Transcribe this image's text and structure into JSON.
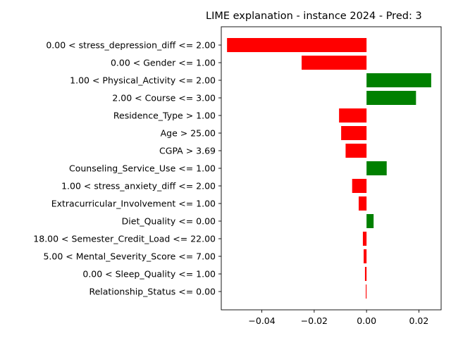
{
  "chart_data": {
    "type": "bar",
    "orientation": "horizontal",
    "title": "LIME explanation - instance 2024 - Pred: 3",
    "xlabel": "",
    "ylabel": "",
    "xlim": [
      -0.0555,
      0.0285
    ],
    "xticks": [
      -0.04,
      -0.02,
      0.0,
      0.02
    ],
    "xtick_labels": [
      "−0.04",
      "−0.02",
      "0.00",
      "0.02"
    ],
    "grid": false,
    "legend": "none",
    "colors": {
      "positive": "#008000",
      "negative": "#ff0000"
    },
    "categories": [
      "0.00 < stress_depression_diff <= 2.00",
      "0.00 < Gender <= 1.00",
      "1.00 < Physical_Activity <= 2.00",
      "2.00 < Course <= 3.00",
      "Residence_Type > 1.00",
      "Age > 25.00",
      "CGPA > 3.69",
      "Counseling_Service_Use <= 1.00",
      "1.00 < stress_anxiety_diff <= 2.00",
      "Extracurricular_Involvement <= 1.00",
      "Diet_Quality <= 0.00",
      "18.00 < Semester_Credit_Load <= 22.00",
      "5.00 < Mental_Severity_Score <= 7.00",
      "0.00 < Sleep_Quality <= 1.00",
      "Relationship_Status <= 0.00"
    ],
    "values": [
      -0.0533,
      -0.0248,
      0.0247,
      0.0189,
      -0.0105,
      -0.0097,
      -0.008,
      0.0077,
      -0.0055,
      -0.003,
      0.0027,
      -0.0014,
      -0.0011,
      -0.0006,
      -0.0003
    ]
  }
}
